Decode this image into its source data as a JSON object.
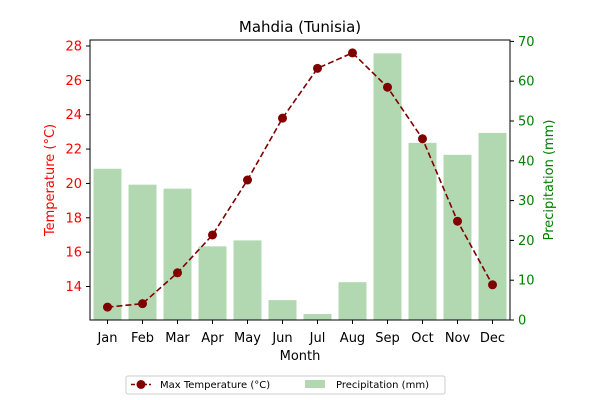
{
  "chart_data": {
    "type": "bar+line",
    "title": "Mahdia (Tunisia)",
    "xlabel": "Month",
    "categories": [
      "Jan",
      "Feb",
      "Mar",
      "Apr",
      "May",
      "Jun",
      "Jul",
      "Aug",
      "Sep",
      "Oct",
      "Nov",
      "Dec"
    ],
    "series": [
      {
        "name": "Max Temperature (°C)",
        "type": "line",
        "axis": "left",
        "color": "#800000",
        "line_style": "dashed",
        "marker": "circle",
        "values": [
          12.8,
          13.0,
          14.8,
          17.0,
          20.2,
          23.8,
          26.7,
          27.6,
          25.6,
          22.6,
          17.8,
          14.1
        ]
      },
      {
        "name": "Precipitation (mm)",
        "type": "bar",
        "axis": "right",
        "color": "#b2d8b2",
        "values": [
          38,
          34,
          33,
          18.5,
          20,
          5,
          1.5,
          9.5,
          67,
          44.5,
          41.5,
          47
        ]
      }
    ],
    "y_left": {
      "label": "Temperature (°C)",
      "color": "#ff0000",
      "range": [
        12.05,
        28.35
      ],
      "ticks": [
        14,
        16,
        18,
        20,
        22,
        24,
        26,
        28
      ]
    },
    "y_right": {
      "label": "Precipitation (mm)",
      "color": "#008000",
      "range": [
        0,
        70.35
      ],
      "ticks": [
        0,
        10,
        20,
        30,
        40,
        50,
        60,
        70
      ]
    },
    "grid": false,
    "legend_position": "bottom-center"
  }
}
